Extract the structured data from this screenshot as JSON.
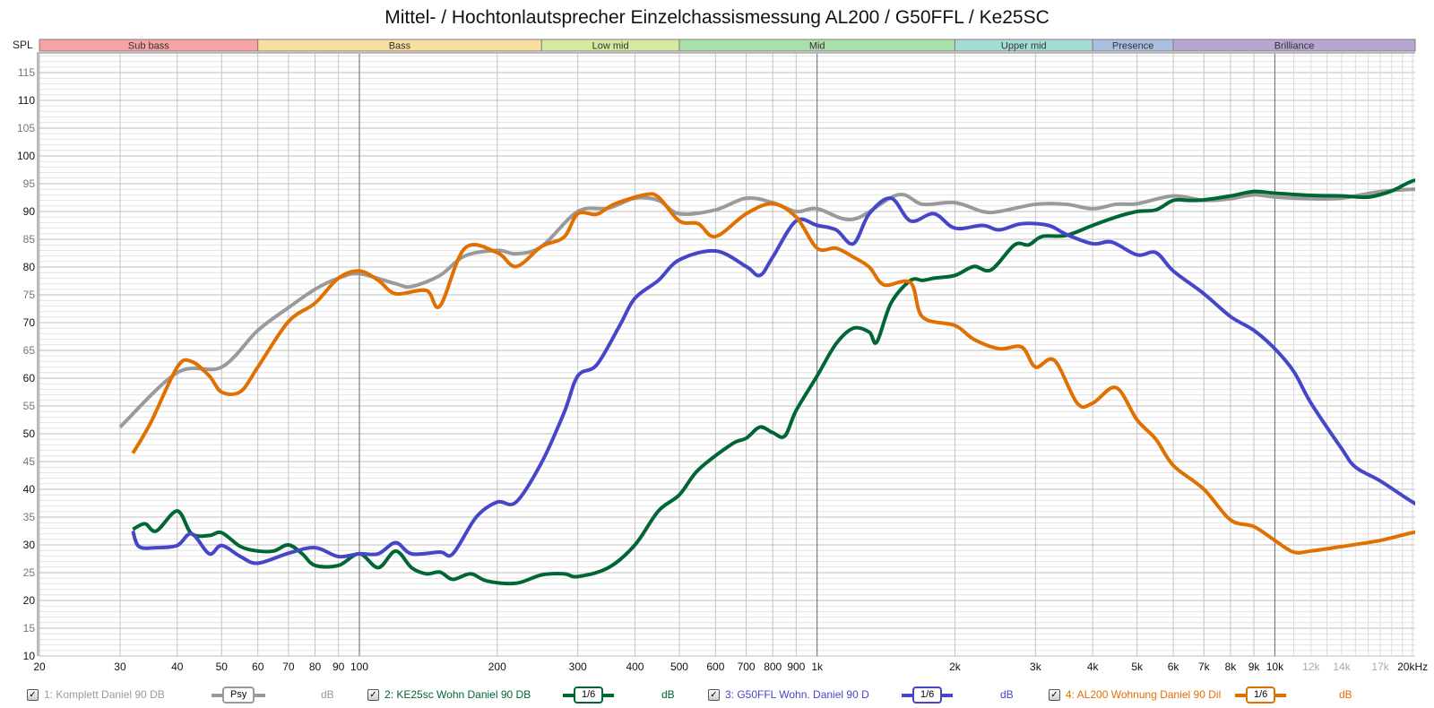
{
  "chart_data": {
    "type": "line",
    "title": "Mittel- / Hochtonlautsprecher Einzelchassismessung AL200 / G50FFL / Ke25SC",
    "ylabel": "SPL",
    "xlabel": "",
    "xscale": "log",
    "xlim": [
      20,
      22000
    ],
    "ylim": [
      10,
      118
    ],
    "y_ticks": [
      10,
      15,
      20,
      25,
      30,
      35,
      40,
      45,
      50,
      55,
      60,
      65,
      70,
      75,
      80,
      85,
      90,
      95,
      100,
      105,
      110,
      115
    ],
    "x_ticks": [
      {
        "f": 20,
        "label": "20"
      },
      {
        "f": 30,
        "label": "30"
      },
      {
        "f": 40,
        "label": "40"
      },
      {
        "f": 50,
        "label": "50"
      },
      {
        "f": 60,
        "label": "60"
      },
      {
        "f": 70,
        "label": "70"
      },
      {
        "f": 80,
        "label": "80"
      },
      {
        "f": 90,
        "label": "90"
      },
      {
        "f": 100,
        "label": "100"
      },
      {
        "f": 200,
        "label": "200"
      },
      {
        "f": 300,
        "label": "300"
      },
      {
        "f": 400,
        "label": "400"
      },
      {
        "f": 500,
        "label": "500"
      },
      {
        "f": 600,
        "label": "600"
      },
      {
        "f": 700,
        "label": "700"
      },
      {
        "f": 800,
        "label": "800"
      },
      {
        "f": 900,
        "label": "900"
      },
      {
        "f": 1000,
        "label": "1k"
      },
      {
        "f": 2000,
        "label": "2k"
      },
      {
        "f": 3000,
        "label": "3k"
      },
      {
        "f": 4000,
        "label": "4k"
      },
      {
        "f": 5000,
        "label": "5k"
      },
      {
        "f": 6000,
        "label": "6k"
      },
      {
        "f": 7000,
        "label": "7k"
      },
      {
        "f": 8000,
        "label": "8k"
      },
      {
        "f": 9000,
        "label": "9k"
      },
      {
        "f": 10000,
        "label": "10k"
      },
      {
        "f": 12000,
        "label": "12k",
        "muted": true
      },
      {
        "f": 14000,
        "label": "14k",
        "muted": true
      },
      {
        "f": 17000,
        "label": "17k",
        "muted": true
      },
      {
        "f": 20000,
        "label": "20kHz"
      }
    ],
    "bands": [
      {
        "label": "Sub bass",
        "from": 20,
        "to": 60,
        "color": "#f6a3a3"
      },
      {
        "label": "Bass",
        "from": 60,
        "to": 250,
        "color": "#f9df9f"
      },
      {
        "label": "Low mid",
        "from": 250,
        "to": 500,
        "color": "#d3eba0"
      },
      {
        "label": "Mid",
        "from": 500,
        "to": 2000,
        "color": "#a8e0aa"
      },
      {
        "label": "Upper mid",
        "from": 2000,
        "to": 4000,
        "color": "#a3ddd6"
      },
      {
        "label": "Presence",
        "from": 4000,
        "to": 6000,
        "color": "#a9bfe3"
      },
      {
        "label": "Brilliance",
        "from": 6000,
        "to": 22000,
        "color": "#b6a6d4"
      }
    ],
    "series": [
      {
        "name": "1: Komplett  Daniel 90 DB",
        "color": "#9a9a9a",
        "smoothing": "Psy",
        "unit": "dB",
        "x": [
          30,
          40,
          50,
          60,
          70,
          80,
          90,
          100,
          120,
          130,
          150,
          170,
          200,
          220,
          250,
          300,
          350,
          400,
          450,
          500,
          600,
          700,
          800,
          900,
          1000,
          1200,
          1500,
          1700,
          2000,
          2300,
          2500,
          3000,
          3500,
          4000,
          4500,
          5000,
          6000,
          7000,
          8000,
          9000,
          10000,
          12000,
          14000,
          17000,
          20000,
          22000
        ],
        "y": [
          51.2,
          61,
          62,
          68.6,
          72.7,
          76,
          78,
          78.8,
          77,
          76.5,
          78.5,
          82,
          83,
          82.4,
          83.7,
          90,
          90.6,
          92.4,
          92,
          89.6,
          90.3,
          92.4,
          91.6,
          90,
          90.5,
          88.6,
          93,
          91.3,
          91.6,
          90,
          90,
          91.3,
          91.3,
          90.5,
          91.3,
          91.4,
          92.8,
          92,
          92.3,
          93,
          92.6,
          92.3,
          92.4,
          93.6,
          94,
          94
        ]
      },
      {
        "name": "2: KE25sc Wohn Daniel 90 DB",
        "color": "#006633",
        "smoothing": "1/6",
        "unit": "dB",
        "x": [
          32,
          34,
          36,
          40,
          43,
          47,
          50,
          55,
          60,
          65,
          70,
          75,
          80,
          90,
          100,
          110,
          120,
          130,
          140,
          150,
          160,
          175,
          190,
          220,
          250,
          280,
          300,
          350,
          400,
          450,
          500,
          550,
          650,
          700,
          750,
          800,
          850,
          900,
          1000,
          1100,
          1200,
          1300,
          1350,
          1450,
          1600,
          1700,
          1800,
          2000,
          2200,
          2400,
          2700,
          2900,
          3100,
          3500,
          4000,
          4500,
          5000,
          5500,
          6000,
          6500,
          7000,
          8000,
          9000,
          10000,
          12000,
          14000,
          16000,
          18000,
          20000,
          22000
        ],
        "y": [
          32.8,
          33.8,
          32.5,
          36.1,
          32,
          31.7,
          32.2,
          29.7,
          28.9,
          28.9,
          30,
          28.4,
          26.3,
          26.3,
          28.4,
          25.9,
          28.9,
          25.9,
          24.8,
          25.1,
          23.8,
          24.8,
          23.5,
          23.1,
          24.6,
          24.8,
          24.3,
          25.9,
          30,
          36.1,
          39,
          43.5,
          48.1,
          49.2,
          51.2,
          50.2,
          49.6,
          54.2,
          60.4,
          66.2,
          69,
          68.3,
          66.5,
          73.5,
          77.6,
          77.6,
          78,
          78.5,
          80.1,
          79.5,
          84,
          84,
          85.5,
          85.7,
          87.5,
          89,
          90,
          90.3,
          92,
          92,
          92.1,
          92.8,
          93.6,
          93.3,
          92.9,
          92.8,
          92.6,
          93.7,
          95.5,
          96
        ]
      },
      {
        "name": "3: G50FFL Wohn. Daniel 90 D",
        "color": "#4646c8",
        "smoothing": "1/6",
        "unit": "dB",
        "x": [
          32,
          33,
          36,
          40,
          43,
          47,
          50,
          55,
          60,
          70,
          80,
          90,
          100,
          110,
          120,
          130,
          150,
          160,
          180,
          200,
          220,
          250,
          280,
          300,
          330,
          370,
          400,
          450,
          500,
          600,
          700,
          750,
          800,
          900,
          1000,
          1100,
          1200,
          1300,
          1450,
          1600,
          1800,
          2000,
          2300,
          2500,
          2800,
          3200,
          3500,
          4000,
          4400,
          5000,
          5500,
          6000,
          7000,
          8000,
          9000,
          10000,
          11000,
          12000,
          14000,
          15000,
          17000,
          20000,
          22000
        ],
        "y": [
          32.5,
          29.7,
          29.5,
          29.9,
          32,
          28.4,
          29.9,
          27.9,
          26.7,
          28.5,
          29.5,
          27.9,
          28.4,
          28.4,
          30.4,
          28.4,
          28.7,
          28.4,
          35,
          37.7,
          37.7,
          44.8,
          53.8,
          60.4,
          62.4,
          69.4,
          74.4,
          77.6,
          81.3,
          82.9,
          80.1,
          78.5,
          81.8,
          88.3,
          87.5,
          86.7,
          84.2,
          89.6,
          92.4,
          88.3,
          89.6,
          87,
          87.5,
          86.7,
          87.8,
          87.5,
          85.9,
          84.2,
          84.5,
          82.2,
          82.6,
          79.3,
          75.2,
          71.1,
          68.6,
          65.3,
          61.2,
          55.5,
          47.3,
          44,
          41.5,
          37.7,
          36
        ]
      },
      {
        "name": "4: AL200 Wohnung Daniel 90 Dil",
        "color": "#e07000",
        "smoothing": "1/6",
        "unit": "dB",
        "x": [
          32,
          35,
          40,
          43,
          47,
          50,
          55,
          60,
          70,
          80,
          90,
          100,
          110,
          120,
          140,
          150,
          170,
          200,
          220,
          250,
          280,
          300,
          330,
          360,
          420,
          450,
          500,
          550,
          600,
          700,
          800,
          900,
          1000,
          1100,
          1200,
          1300,
          1400,
          1600,
          1700,
          2000,
          2200,
          2500,
          2800,
          3000,
          3300,
          3700,
          4000,
          4500,
          5000,
          5500,
          6000,
          7000,
          8000,
          9000,
          10000,
          11000,
          12000,
          14000,
          17000,
          20000,
          22000
        ],
        "y": [
          46.5,
          52,
          62,
          63,
          60.4,
          57.5,
          57.6,
          62,
          70.2,
          73.5,
          78,
          79.3,
          77.6,
          75.2,
          75.8,
          73,
          83.4,
          82.6,
          80.1,
          83.7,
          85.4,
          89.6,
          89.5,
          91.3,
          93,
          92.6,
          88.3,
          87.8,
          85.5,
          89.6,
          91.4,
          89,
          83.4,
          83.4,
          81.8,
          80,
          76.8,
          77.2,
          71,
          69.5,
          67,
          65.3,
          65.6,
          62,
          63.2,
          55.5,
          55.5,
          58.3,
          52.5,
          49,
          44.3,
          40,
          34.5,
          33.3,
          30.8,
          28.7,
          28.9,
          29.7,
          30.8,
          32.2,
          32.5
        ]
      }
    ]
  }
}
